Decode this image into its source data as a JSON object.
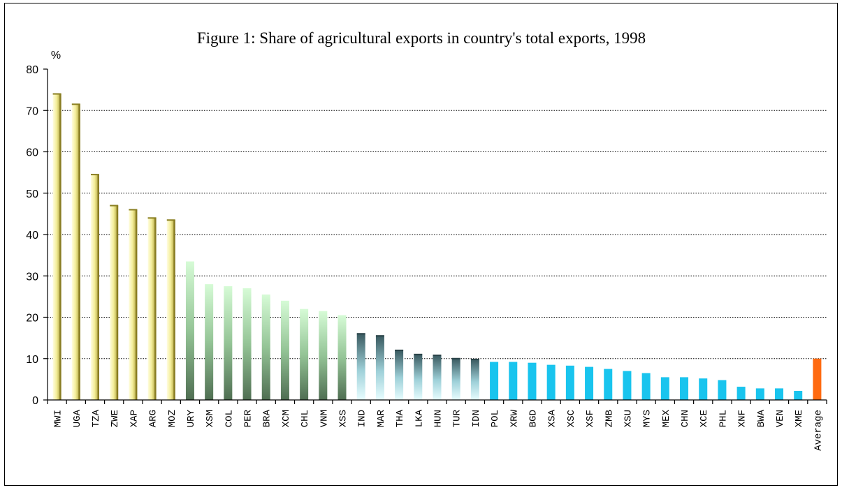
{
  "chart_data": {
    "type": "bar",
    "title": "Figure 1: Share of agricultural exports in country's total exports, 1998",
    "ylabel": "%",
    "xlabel": "",
    "ylim": [
      0,
      80
    ],
    "yticks": [
      0,
      10,
      20,
      30,
      40,
      50,
      60,
      70,
      80
    ],
    "grid": true,
    "legend": "none",
    "categories": [
      "MWI",
      "UGA",
      "TZA",
      "ZWE",
      "XAP",
      "ARG",
      "MOZ",
      "URY",
      "XSM",
      "COL",
      "PER",
      "BRA",
      "XCM",
      "CHL",
      "VNM",
      "XSS",
      "IND",
      "MAR",
      "THA",
      "LKA",
      "HUN",
      "TUR",
      "IDN",
      "POL",
      "XRW",
      "BGD",
      "XSA",
      "XSC",
      "XSF",
      "ZMB",
      "XSU",
      "MYS",
      "MEX",
      "CHN",
      "XCE",
      "PHL",
      "XNF",
      "BWA",
      "VEN",
      "XME",
      "Average"
    ],
    "values": [
      74,
      71.5,
      54.5,
      47,
      46,
      44,
      43.5,
      33.5,
      28,
      27.5,
      27,
      25.5,
      24,
      22,
      21.5,
      20.5,
      16,
      15.5,
      12,
      11,
      10.8,
      10,
      9.8,
      9.2,
      9.2,
      9,
      8.5,
      8.3,
      8,
      7.5,
      7,
      6.5,
      5.5,
      5.5,
      5.2,
      4.8,
      3.2,
      2.8,
      2.8,
      2.2,
      10
    ],
    "groups": [
      9,
      9,
      9,
      9,
      9,
      9,
      9,
      1,
      1,
      1,
      1,
      1,
      1,
      1,
      1,
      1,
      2,
      2,
      2,
      2,
      2,
      2,
      2,
      3,
      3,
      3,
      3,
      3,
      3,
      3,
      3,
      3,
      3,
      3,
      3,
      3,
      3,
      3,
      3,
      3,
      4
    ]
  },
  "colors": {
    "group_1_top": "#fffcc8",
    "group_1_bottom": "#e8e070",
    "group_2_top": "#d6fbd6",
    "group_2_bottom": "#4f6e52",
    "group_3_top": "#3a5a60",
    "group_3_bottom": "#e4fcff",
    "group_4": "#19c4ee",
    "group_5": "#ff6a10",
    "grid": "#000000",
    "axis": "#000000"
  }
}
